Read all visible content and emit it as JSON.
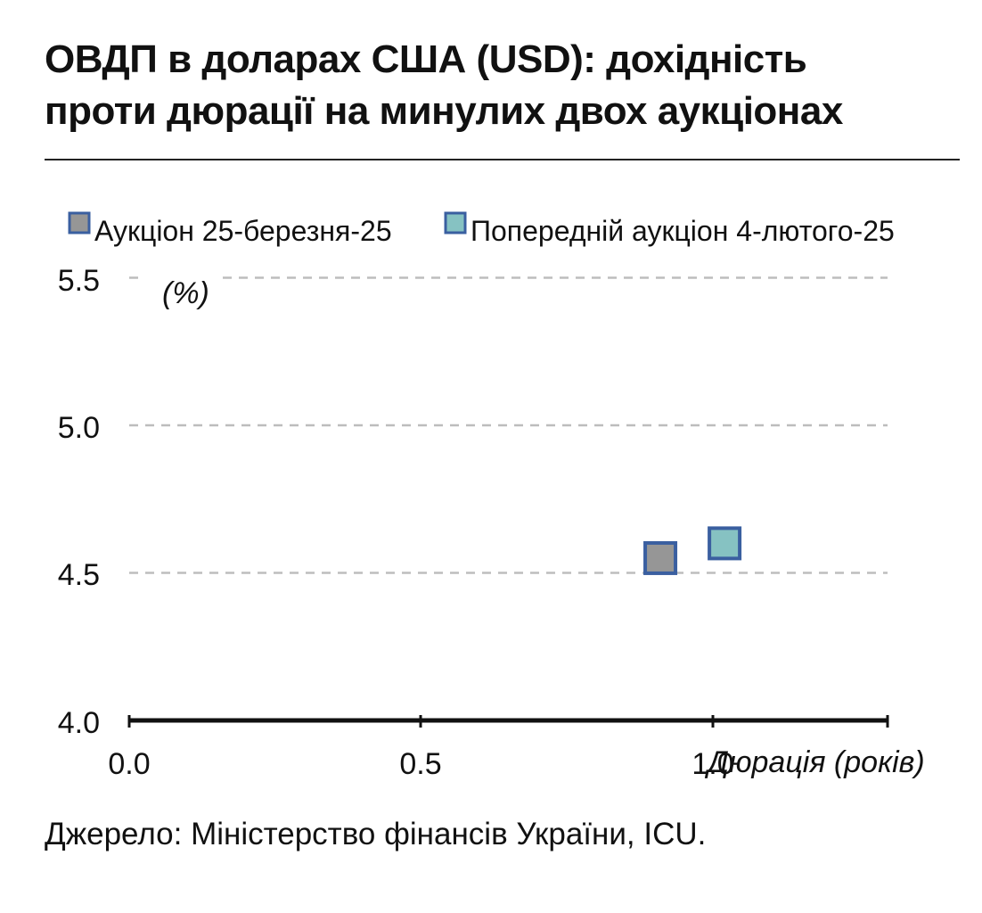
{
  "title_line1": "ОВДП в доларах США (USD): дохідність",
  "title_line2": "проти дюрації на минулих двох аукціонах",
  "source": "Джерело: Міністерство фінансів України, ICU.",
  "chart_data": {
    "type": "scatter",
    "xlabel": "Дюрація (років)",
    "ylabel": "(%)",
    "xlim": [
      0.0,
      1.3
    ],
    "ylim": [
      4.0,
      5.5
    ],
    "x_ticks": [
      "0.0",
      "0.5",
      "1.0"
    ],
    "y_ticks": [
      "4.0",
      "4.5",
      "5.0",
      "5.5"
    ],
    "grid": true,
    "legend_position": "top",
    "series": [
      {
        "name": "Аукціон 25-березня-25",
        "color": "#969696",
        "edge": "#3A5FA0",
        "points": [
          {
            "x": 0.91,
            "y": 4.55
          }
        ]
      },
      {
        "name": "Попередній аукціон 4-лютого-25",
        "color": "#86C2C2",
        "edge": "#3A5FA0",
        "points": [
          {
            "x": 1.02,
            "y": 4.6
          }
        ]
      }
    ]
  }
}
